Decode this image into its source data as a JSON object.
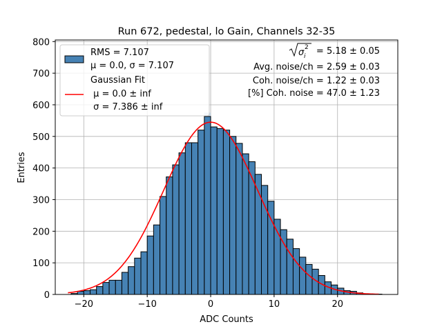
{
  "chart_data": {
    "type": "bar",
    "title": "Run 672, pedestal, lo Gain, Channels 32-35",
    "xlabel": "ADC Counts",
    "ylabel": "Entries",
    "xlim": [
      -24.5,
      29.5
    ],
    "ylim": [
      0,
      805
    ],
    "xticks": [
      -20,
      -10,
      0,
      10,
      20
    ],
    "xtick_labels": [
      "−20",
      "−10",
      "0",
      "10",
      "20"
    ],
    "yticks": [
      0,
      100,
      200,
      300,
      400,
      500,
      600,
      700,
      800
    ],
    "grid": true,
    "legend_position": "top-left",
    "histogram": {
      "bin_width": 1,
      "x_start": -22,
      "counts": [
        3,
        10,
        12,
        15,
        25,
        38,
        45,
        45,
        70,
        88,
        115,
        135,
        185,
        220,
        310,
        372,
        410,
        448,
        480,
        480,
        520,
        563,
        530,
        525,
        520,
        500,
        478,
        445,
        420,
        380,
        345,
        295,
        238,
        205,
        175,
        145,
        118,
        95,
        80,
        60,
        40,
        30,
        20,
        12,
        10,
        5,
        2,
        1,
        1
      ],
      "fill_color": "#4682b4",
      "edge_color": "#000000"
    },
    "shadow_bar": {
      "x_start": -1,
      "x_end": 0,
      "value": 575,
      "color": "#c6d6e6"
    },
    "fit": {
      "name": "Gaussian Fit",
      "mean": 0.0,
      "sigma": 7.386,
      "amplitude": 545,
      "x_range": [
        -22.5,
        26.5
      ],
      "color": "#ff0000"
    },
    "legend": [
      {
        "label": "RMS = 7.107",
        "sub": "μ = 0.0, σ = 7.107",
        "style": "patch"
      },
      {
        "label": "Gaussian Fit",
        "sub": " μ = 0.0 ± inf",
        "sub2": " σ = 7.386 ± inf",
        "style": "line"
      }
    ],
    "annotations": [
      " = 5.18 ± 0.05",
      "Avg. noise/ch = 2.59 ± 0.03",
      "Coh. noise/ch = 1.22 ± 0.03",
      "[%] Coh. noise = 47.0 ± 1.23"
    ]
  }
}
